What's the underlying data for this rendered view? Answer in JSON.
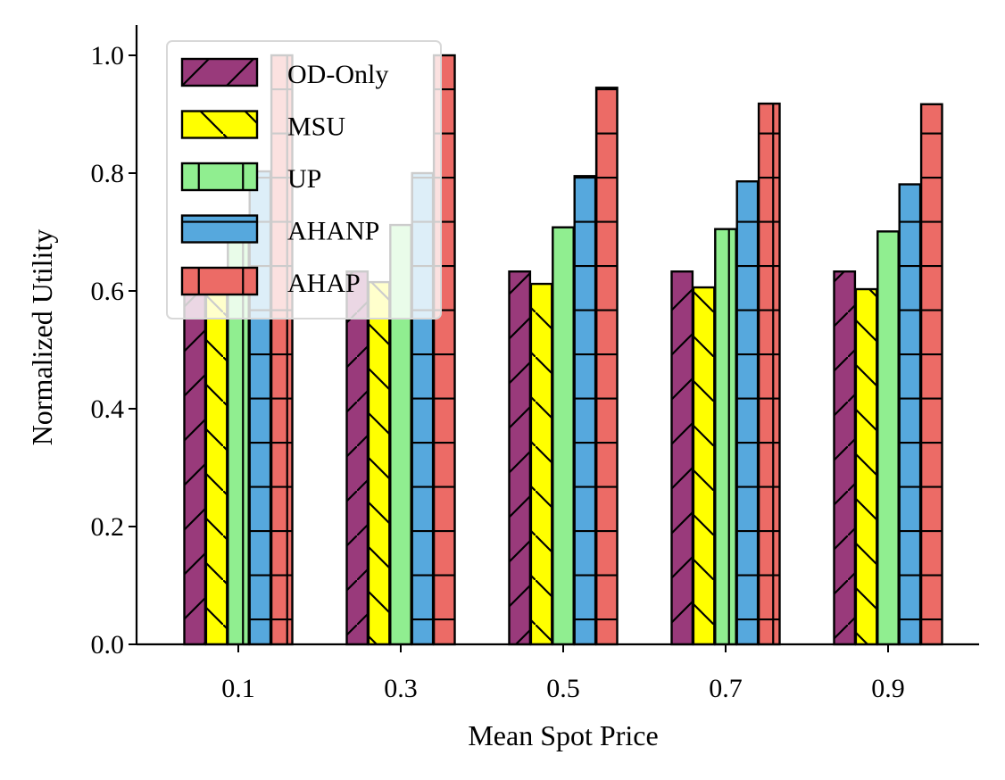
{
  "chart_data": {
    "type": "bar",
    "title": "",
    "xlabel": "Mean Spot Price",
    "ylabel": "Normalized Utility",
    "categories": [
      "0.1",
      "0.3",
      "0.5",
      "0.7",
      "0.9"
    ],
    "ylim": [
      0,
      1.05
    ],
    "yticks": [
      "0.0",
      "0.2",
      "0.4",
      "0.6",
      "0.8",
      "1.0"
    ],
    "grid": false,
    "legend_position": "top-left",
    "series": [
      {
        "name": "OD-Only",
        "color": "#993a7b",
        "hatch": "diagonal-up",
        "values": [
          0.633,
          0.633,
          0.633,
          0.633,
          0.633
        ]
      },
      {
        "name": "MSU",
        "color": "#ffff00",
        "hatch": "diagonal-down",
        "values": [
          0.62,
          0.615,
          0.612,
          0.606,
          0.603
        ]
      },
      {
        "name": "UP",
        "color": "#90ee90",
        "hatch": "vertical",
        "values": [
          0.715,
          0.712,
          0.708,
          0.705,
          0.701
        ]
      },
      {
        "name": "AHANP",
        "color": "#56a8dd",
        "hatch": "horizontal",
        "values": [
          0.803,
          0.8,
          0.795,
          0.786,
          0.781
        ]
      },
      {
        "name": "AHAP",
        "color": "#ec6b66",
        "hatch": "grid",
        "values": [
          1.0,
          1.0,
          0.945,
          0.918,
          0.917
        ]
      }
    ]
  }
}
